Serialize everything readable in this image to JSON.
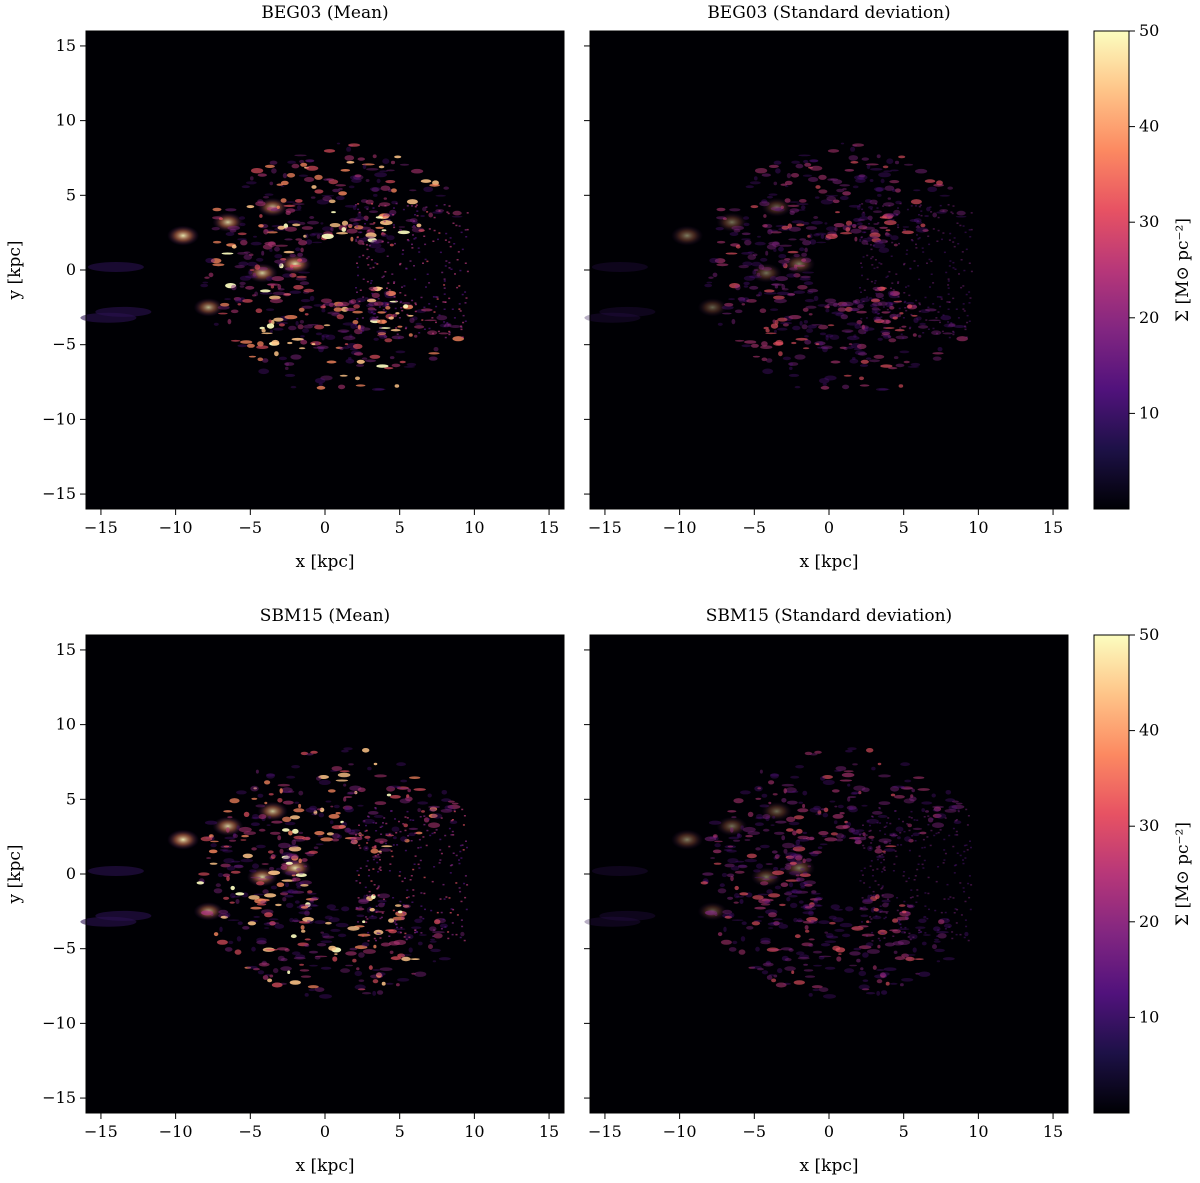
{
  "colors": {
    "map_background": "#000004",
    "colormap": [
      "#000004",
      "#1d1147",
      "#51127c",
      "#822681",
      "#b73779",
      "#e75263",
      "#fc8961",
      "#fec488",
      "#fcfdbf"
    ]
  },
  "chart_data": [
    {
      "type": "heatmap",
      "id": "beg03_mean",
      "title": "BEG03 (Mean)",
      "xlabel": "x [kpc]",
      "ylabel": "y [kpc]",
      "xlim": [
        -16,
        16
      ],
      "ylim": [
        -16,
        16
      ],
      "xticks": [
        -15,
        -10,
        -5,
        0,
        5,
        10,
        15
      ],
      "yticks": [
        -15,
        -10,
        -5,
        0,
        5,
        10,
        15
      ],
      "colormap": "magma",
      "intensity_scale": 1.0
    },
    {
      "type": "heatmap",
      "id": "beg03_std",
      "title": "BEG03 (Standard deviation)",
      "xlabel": "x [kpc]",
      "ylabel": "",
      "xlim": [
        -16,
        16
      ],
      "ylim": [
        -16,
        16
      ],
      "xticks": [
        -15,
        -10,
        -5,
        0,
        5,
        10,
        15
      ],
      "yticks": [
        -15,
        -10,
        -5,
        0,
        5,
        10,
        15
      ],
      "colormap": "magma",
      "intensity_scale": 0.55
    },
    {
      "type": "heatmap",
      "id": "sbm15_mean",
      "title": "SBM15 (Mean)",
      "xlabel": "x [kpc]",
      "ylabel": "y [kpc]",
      "xlim": [
        -16,
        16
      ],
      "ylim": [
        -16,
        16
      ],
      "xticks": [
        -15,
        -10,
        -5,
        0,
        5,
        10,
        15
      ],
      "yticks": [
        -15,
        -10,
        -5,
        0,
        5,
        10,
        15
      ],
      "colormap": "magma",
      "intensity_scale": 1.0
    },
    {
      "type": "heatmap",
      "id": "sbm15_std",
      "title": "SBM15 (Standard deviation)",
      "xlabel": "x [kpc]",
      "ylabel": "",
      "xlim": [
        -16,
        16
      ],
      "ylim": [
        -16,
        16
      ],
      "xticks": [
        -15,
        -10,
        -5,
        0,
        5,
        10,
        15
      ],
      "yticks": [
        -15,
        -10,
        -5,
        0,
        5,
        10,
        15
      ],
      "colormap": "magma",
      "intensity_scale": 0.55
    }
  ],
  "colorbars": [
    {
      "label": "Σ [M⊙ pc⁻²]",
      "range": [
        0,
        50
      ],
      "ticks": [
        10,
        20,
        30,
        40,
        50
      ]
    },
    {
      "label": "Σ [M⊙ pc⁻²]",
      "range": [
        0,
        50
      ],
      "ticks": [
        10,
        20,
        30,
        40,
        50
      ]
    }
  ]
}
